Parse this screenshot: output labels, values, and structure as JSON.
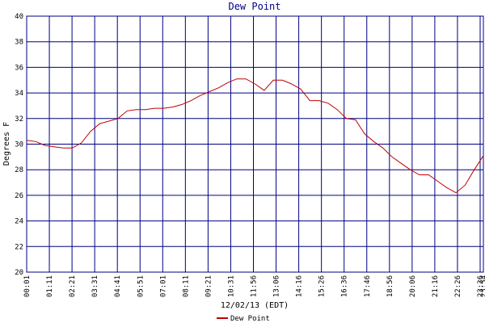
{
  "chart_data": {
    "type": "line",
    "title": "Dew Point",
    "x_label": "12/02/13 (EDT)",
    "y_label": "Degrees F",
    "xticks": [
      "00:01",
      "01:11",
      "02:21",
      "03:31",
      "04:41",
      "05:51",
      "07:01",
      "08:11",
      "09:21",
      "10:31",
      "11:56",
      "13:06",
      "14:16",
      "15:26",
      "16:36",
      "17:46",
      "18:56",
      "20:06",
      "21:16",
      "22:26",
      "23:36",
      "23:54"
    ],
    "ylim": [
      20,
      40
    ],
    "yticks": [
      20,
      22,
      24,
      26,
      28,
      30,
      32,
      34,
      36,
      38,
      40
    ],
    "grid": true,
    "grid_color": "#000080",
    "series": [
      {
        "name": "Dew Point",
        "color": "#c00000",
        "values": [
          30.3,
          30.2,
          29.9,
          29.8,
          29.7,
          29.7,
          30.1,
          31.0,
          31.6,
          31.8,
          32.0,
          32.6,
          32.7,
          32.7,
          32.8,
          32.8,
          32.9,
          33.1,
          33.4,
          33.8,
          34.1,
          34.4,
          34.8,
          35.1,
          35.1,
          34.7,
          34.2,
          35.0,
          35.0,
          34.7,
          34.3,
          33.4,
          33.4,
          33.2,
          32.7,
          32.0,
          31.9,
          30.8,
          30.2,
          29.7,
          29.0,
          28.5,
          28.0,
          27.6,
          27.6,
          27.1,
          26.6,
          26.2,
          26.8,
          28.0,
          29.1
        ]
      }
    ]
  }
}
